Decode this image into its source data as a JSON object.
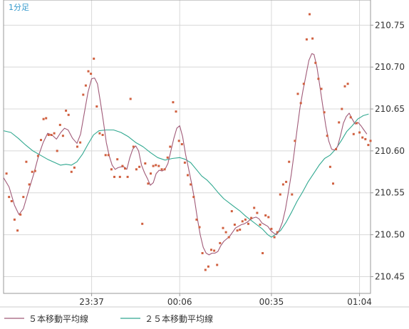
{
  "chart_data": {
    "type": "line",
    "title": "1分足",
    "xlabel": "",
    "ylabel": "",
    "ylim": [
      210.43,
      210.78
    ],
    "xlim": [
      0,
      100
    ],
    "grid": true,
    "legend_position": "bottom-left",
    "colors": {
      "ma5": "#a05a78",
      "ma25": "#30a890",
      "points": "#d06040",
      "grid": "#d8d8d8",
      "axis": "#999999",
      "title": "#3399cc"
    },
    "x_ticks": [
      {
        "x": 24,
        "label": "23:37"
      },
      {
        "x": 48,
        "label": "00:06"
      },
      {
        "x": 73,
        "label": "00:35"
      },
      {
        "x": 97,
        "label": "01:04"
      }
    ],
    "y_ticks": [
      210.45,
      210.5,
      210.55,
      210.6,
      210.65,
      210.7,
      210.75
    ],
    "y_tick_labels": [
      "210.45",
      "210.50",
      "210.55",
      "210.60",
      "210.65",
      "210.70",
      "210.75"
    ],
    "points": [
      [
        0.8,
        210.573
      ],
      [
        1.5,
        210.545
      ],
      [
        2.2,
        210.54
      ],
      [
        3.0,
        210.518
      ],
      [
        3.8,
        210.505
      ],
      [
        4.6,
        210.524
      ],
      [
        5.4,
        210.545
      ],
      [
        6.2,
        210.587
      ],
      [
        7.0,
        210.56
      ],
      [
        7.8,
        210.575
      ],
      [
        8.6,
        210.576
      ],
      [
        9.4,
        210.594
      ],
      [
        10.2,
        210.613
      ],
      [
        10.9,
        210.638
      ],
      [
        11.6,
        210.639
      ],
      [
        12.3,
        210.619
      ],
      [
        13.0,
        210.619
      ],
      [
        13.8,
        210.621
      ],
      [
        14.6,
        210.6
      ],
      [
        15.4,
        210.631
      ],
      [
        16.2,
        210.618
      ],
      [
        17.0,
        210.648
      ],
      [
        17.7,
        210.643
      ],
      [
        18.5,
        210.575
      ],
      [
        19.3,
        210.58
      ],
      [
        20.1,
        210.605
      ],
      [
        20.9,
        210.61
      ],
      [
        21.7,
        210.667
      ],
      [
        22.4,
        210.678
      ],
      [
        23.1,
        210.695
      ],
      [
        23.8,
        210.692
      ],
      [
        24.6,
        210.71
      ],
      [
        25.4,
        210.653
      ],
      [
        26.2,
        210.621
      ],
      [
        27.0,
        210.619
      ],
      [
        27.8,
        210.595
      ],
      [
        28.6,
        210.595
      ],
      [
        29.4,
        210.578
      ],
      [
        30.2,
        210.569
      ],
      [
        31.0,
        210.59
      ],
      [
        31.7,
        210.569
      ],
      [
        32.4,
        210.582
      ],
      [
        33.1,
        210.579
      ],
      [
        33.8,
        210.569
      ],
      [
        34.6,
        210.662
      ],
      [
        35.4,
        210.605
      ],
      [
        36.2,
        210.578
      ],
      [
        37.0,
        210.581
      ],
      [
        37.8,
        210.513
      ],
      [
        38.6,
        210.585
      ],
      [
        39.4,
        210.561
      ],
      [
        40.1,
        210.573
      ],
      [
        40.8,
        210.582
      ],
      [
        41.5,
        210.583
      ],
      [
        42.3,
        210.582
      ],
      [
        43.1,
        210.578
      ],
      [
        43.9,
        210.578
      ],
      [
        44.7,
        210.592
      ],
      [
        45.4,
        210.605
      ],
      [
        46.2,
        210.658
      ],
      [
        47.0,
        210.647
      ],
      [
        47.8,
        210.612
      ],
      [
        48.6,
        210.608
      ],
      [
        49.4,
        210.586
      ],
      [
        50.2,
        210.571
      ],
      [
        51.0,
        210.56
      ],
      [
        51.8,
        210.545
      ],
      [
        52.6,
        210.518
      ],
      [
        53.4,
        210.509
      ],
      [
        54.2,
        210.478
      ],
      [
        55.0,
        210.458
      ],
      [
        55.8,
        210.462
      ],
      [
        56.6,
        210.482
      ],
      [
        57.4,
        210.481
      ],
      [
        58.2,
        210.464
      ],
      [
        59.0,
        210.49
      ],
      [
        59.8,
        210.508
      ],
      [
        60.6,
        210.503
      ],
      [
        61.4,
        210.497
      ],
      [
        62.2,
        210.528
      ],
      [
        63.0,
        210.512
      ],
      [
        63.7,
        210.505
      ],
      [
        64.4,
        210.506
      ],
      [
        65.1,
        210.516
      ],
      [
        65.9,
        210.518
      ],
      [
        66.7,
        210.513
      ],
      [
        67.5,
        210.52
      ],
      [
        68.3,
        210.532
      ],
      [
        69.1,
        210.526
      ],
      [
        69.9,
        210.512
      ],
      [
        70.6,
        210.478
      ],
      [
        71.4,
        210.523
      ],
      [
        72.2,
        210.521
      ],
      [
        73.0,
        210.507
      ],
      [
        73.8,
        210.497
      ],
      [
        74.6,
        210.503
      ],
      [
        75.4,
        210.548
      ],
      [
        76.2,
        210.56
      ],
      [
        77.0,
        210.563
      ],
      [
        77.8,
        210.587
      ],
      [
        78.6,
        210.548
      ],
      [
        79.4,
        210.612
      ],
      [
        80.2,
        210.668
      ],
      [
        81.0,
        210.657
      ],
      [
        81.8,
        210.68
      ],
      [
        82.6,
        210.733
      ],
      [
        83.4,
        210.763
      ],
      [
        84.2,
        210.734
      ],
      [
        85.0,
        210.705
      ],
      [
        85.8,
        210.686
      ],
      [
        86.6,
        210.674
      ],
      [
        87.4,
        210.646
      ],
      [
        88.2,
        210.618
      ],
      [
        89.0,
        210.581
      ],
      [
        89.8,
        210.561
      ],
      [
        90.6,
        210.602
      ],
      [
        91.4,
        210.634
      ],
      [
        92.2,
        210.65
      ],
      [
        93.0,
        210.677
      ],
      [
        93.8,
        210.68
      ],
      [
        94.6,
        210.64
      ],
      [
        95.4,
        210.62
      ],
      [
        96.2,
        210.633
      ],
      [
        97.0,
        210.622
      ],
      [
        97.8,
        210.616
      ],
      [
        98.6,
        210.614
      ],
      [
        99.4,
        210.607
      ],
      [
        100.0,
        210.612
      ]
    ],
    "series": [
      {
        "name": "５本移動平均線",
        "color": "#a05a78",
        "values": [
          [
            0.0,
            210.568
          ],
          [
            1.5,
            210.557
          ],
          [
            3.0,
            210.535
          ],
          [
            4.2,
            210.524
          ],
          [
            5.4,
            210.531
          ],
          [
            6.8,
            210.552
          ],
          [
            8.2,
            210.572
          ],
          [
            9.6,
            210.595
          ],
          [
            10.8,
            210.61
          ],
          [
            12.0,
            210.621
          ],
          [
            13.2,
            210.619
          ],
          [
            14.4,
            210.614
          ],
          [
            15.6,
            210.622
          ],
          [
            16.6,
            210.627
          ],
          [
            17.6,
            210.625
          ],
          [
            18.8,
            210.615
          ],
          [
            20.0,
            210.609
          ],
          [
            21.0,
            210.62
          ],
          [
            22.0,
            210.645
          ],
          [
            23.0,
            210.67
          ],
          [
            24.0,
            210.686
          ],
          [
            24.8,
            210.687
          ],
          [
            25.6,
            210.68
          ],
          [
            26.4,
            210.658
          ],
          [
            27.2,
            210.635
          ],
          [
            28.0,
            210.61
          ],
          [
            28.8,
            210.594
          ],
          [
            29.6,
            210.583
          ],
          [
            30.4,
            210.578
          ],
          [
            31.2,
            210.58
          ],
          [
            32.0,
            210.581
          ],
          [
            32.8,
            210.581
          ],
          [
            33.6,
            210.578
          ],
          [
            34.4,
            210.592
          ],
          [
            35.2,
            210.602
          ],
          [
            36.0,
            210.606
          ],
          [
            36.8,
            210.6
          ],
          [
            37.6,
            210.583
          ],
          [
            38.4,
            210.574
          ],
          [
            39.2,
            210.567
          ],
          [
            40.0,
            210.559
          ],
          [
            40.8,
            210.562
          ],
          [
            41.6,
            210.573
          ],
          [
            42.4,
            210.577
          ],
          [
            43.2,
            210.576
          ],
          [
            44.0,
            210.578
          ],
          [
            44.8,
            210.585
          ],
          [
            45.6,
            210.6
          ],
          [
            46.4,
            210.615
          ],
          [
            47.2,
            210.627
          ],
          [
            48.0,
            210.63
          ],
          [
            48.8,
            210.617
          ],
          [
            49.6,
            210.596
          ],
          [
            50.4,
            210.579
          ],
          [
            51.2,
            210.562
          ],
          [
            52.0,
            210.543
          ],
          [
            52.8,
            210.52
          ],
          [
            53.6,
            210.5
          ],
          [
            54.4,
            210.485
          ],
          [
            55.2,
            210.478
          ],
          [
            56.0,
            210.476
          ],
          [
            56.8,
            210.478
          ],
          [
            57.6,
            210.478
          ],
          [
            58.4,
            210.48
          ],
          [
            59.2,
            210.487
          ],
          [
            60.0,
            210.492
          ],
          [
            60.8,
            210.495
          ],
          [
            61.6,
            210.498
          ],
          [
            62.4,
            210.503
          ],
          [
            63.2,
            210.508
          ],
          [
            64.0,
            210.51
          ],
          [
            64.8,
            210.512
          ],
          [
            65.6,
            210.513
          ],
          [
            66.4,
            210.515
          ],
          [
            67.2,
            210.518
          ],
          [
            68.0,
            210.52
          ],
          [
            68.8,
            210.521
          ],
          [
            69.6,
            210.519
          ],
          [
            70.4,
            210.514
          ],
          [
            71.2,
            210.512
          ],
          [
            72.0,
            210.51
          ],
          [
            72.8,
            210.505
          ],
          [
            73.6,
            210.502
          ],
          [
            74.4,
            210.5
          ],
          [
            75.2,
            210.506
          ],
          [
            76.0,
            210.515
          ],
          [
            76.8,
            210.53
          ],
          [
            77.6,
            210.55
          ],
          [
            78.4,
            210.572
          ],
          [
            79.2,
            210.598
          ],
          [
            80.0,
            210.626
          ],
          [
            80.8,
            210.652
          ],
          [
            81.6,
            210.672
          ],
          [
            82.4,
            210.69
          ],
          [
            83.2,
            210.708
          ],
          [
            84.0,
            210.716
          ],
          [
            84.6,
            210.715
          ],
          [
            85.4,
            210.7
          ],
          [
            86.2,
            210.677
          ],
          [
            87.0,
            210.653
          ],
          [
            87.8,
            210.63
          ],
          [
            88.6,
            210.612
          ],
          [
            89.4,
            210.602
          ],
          [
            90.2,
            210.601
          ],
          [
            91.0,
            210.605
          ],
          [
            91.8,
            210.618
          ],
          [
            92.6,
            210.633
          ],
          [
            93.4,
            210.641
          ],
          [
            94.2,
            210.645
          ],
          [
            95.0,
            210.638
          ],
          [
            95.8,
            210.632
          ],
          [
            96.6,
            210.634
          ],
          [
            97.4,
            210.63
          ],
          [
            98.2,
            210.625
          ],
          [
            99.0,
            210.62
          ]
        ]
      },
      {
        "name": "２５本移動平均線",
        "color": "#30a890",
        "values": [
          [
            0.0,
            210.624
          ],
          [
            2.0,
            210.622
          ],
          [
            4.0,
            210.615
          ],
          [
            6.0,
            210.607
          ],
          [
            8.0,
            210.6
          ],
          [
            10.0,
            210.595
          ],
          [
            12.0,
            210.59
          ],
          [
            14.0,
            210.586
          ],
          [
            15.5,
            210.583
          ],
          [
            17.0,
            210.584
          ],
          [
            18.5,
            210.583
          ],
          [
            20.0,
            210.587
          ],
          [
            21.5,
            210.596
          ],
          [
            23.0,
            210.608
          ],
          [
            24.5,
            210.619
          ],
          [
            26.0,
            210.624
          ],
          [
            28.0,
            210.625
          ],
          [
            30.0,
            210.625
          ],
          [
            32.0,
            210.622
          ],
          [
            34.0,
            210.617
          ],
          [
            36.0,
            210.61
          ],
          [
            38.0,
            210.605
          ],
          [
            40.0,
            210.598
          ],
          [
            42.0,
            210.592
          ],
          [
            44.0,
            210.589
          ],
          [
            46.0,
            210.591
          ],
          [
            48.0,
            210.592
          ],
          [
            49.5,
            210.59
          ],
          [
            51.0,
            210.586
          ],
          [
            52.5,
            210.578
          ],
          [
            54.0,
            210.57
          ],
          [
            55.5,
            210.565
          ],
          [
            57.0,
            210.558
          ],
          [
            58.5,
            210.55
          ],
          [
            60.0,
            210.543
          ],
          [
            61.5,
            210.538
          ],
          [
            63.0,
            210.533
          ],
          [
            64.5,
            210.528
          ],
          [
            66.0,
            210.522
          ],
          [
            67.5,
            210.517
          ],
          [
            69.0,
            210.512
          ],
          [
            70.5,
            210.507
          ],
          [
            72.0,
            210.5
          ],
          [
            73.0,
            210.497
          ],
          [
            74.0,
            210.5
          ],
          [
            75.5,
            210.505
          ],
          [
            77.0,
            210.515
          ],
          [
            78.5,
            210.527
          ],
          [
            80.0,
            210.54
          ],
          [
            81.5,
            210.551
          ],
          [
            83.0,
            210.563
          ],
          [
            84.5,
            210.573
          ],
          [
            86.0,
            210.583
          ],
          [
            87.5,
            210.591
          ],
          [
            89.0,
            210.595
          ],
          [
            90.5,
            210.602
          ],
          [
            92.0,
            210.612
          ],
          [
            93.5,
            210.623
          ],
          [
            95.0,
            210.63
          ],
          [
            96.5,
            210.638
          ],
          [
            98.0,
            210.642
          ],
          [
            99.5,
            210.644
          ]
        ]
      }
    ]
  }
}
